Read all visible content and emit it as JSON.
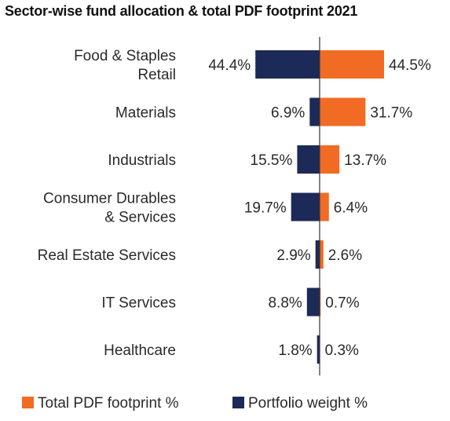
{
  "chart_data": {
    "type": "bar",
    "orientation": "horizontal-diverging",
    "title": "Sector-wise fund allocation & total PDF footprint 2021",
    "categories": [
      [
        "Food & Staples",
        "Retail"
      ],
      [
        "Materials"
      ],
      [
        "Industrials"
      ],
      [
        "Consumer Durables",
        "& Services"
      ],
      [
        "Real Estate Services"
      ],
      [
        "IT Services"
      ],
      [
        "Healthcare"
      ]
    ],
    "series": [
      {
        "name": "Portfolio weight %",
        "direction": "left",
        "color": "#1c2a57",
        "values": [
          44.4,
          6.9,
          15.5,
          19.7,
          2.9,
          8.8,
          1.8
        ],
        "labels": [
          "44.4%",
          "6.9%",
          "15.5%",
          "19.7%",
          "2.9%",
          "8.8%",
          "1.8%"
        ]
      },
      {
        "name": "Total PDF footprint %",
        "direction": "right",
        "color": "#f26b24",
        "values": [
          44.5,
          31.7,
          13.7,
          6.4,
          2.6,
          0.7,
          0.3
        ],
        "labels": [
          "44.5%",
          "31.7%",
          "13.7%",
          "6.4%",
          "2.6%",
          "0.7%",
          "0.3%"
        ]
      }
    ],
    "legend": {
      "position": "bottom",
      "order": [
        "Total PDF footprint %",
        "Portfolio weight %"
      ]
    },
    "grid": false,
    "xlim": [
      -44.5,
      44.5
    ]
  }
}
